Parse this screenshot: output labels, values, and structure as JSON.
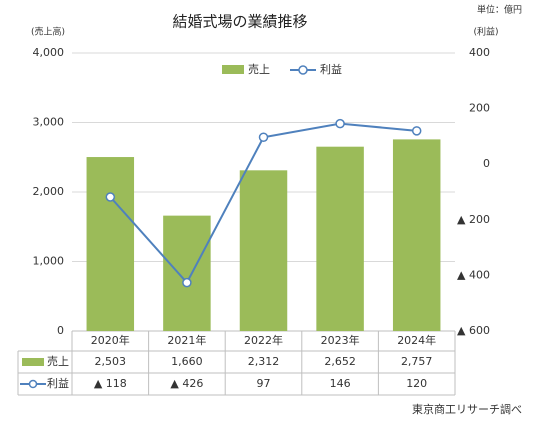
{
  "chart_data": {
    "type": "bar-line",
    "title": "結婚式場の業績推移",
    "unit_note": "単位：億円",
    "y_label": "(売上高)",
    "y2_label": "(利益)",
    "source": "東京商工リサーチ調べ",
    "categories": [
      "2020年",
      "2021年",
      "2022年",
      "2023年",
      "2024年"
    ],
    "series": [
      {
        "name": "売上",
        "type": "bar",
        "color": "#9bbb59",
        "values": [
          2503,
          1660,
          2312,
          2652,
          2757
        ],
        "value_labels": [
          "2,503",
          "1,660",
          "2,312",
          "2,652",
          "2,757"
        ]
      },
      {
        "name": "利益",
        "type": "line",
        "axis": "y2",
        "color": "#4f81bd",
        "values": [
          -118,
          -426,
          97,
          146,
          120
        ],
        "value_labels": [
          "▲ 118",
          "▲ 426",
          "97",
          "146",
          "120"
        ]
      }
    ],
    "ylim": [
      0,
      4000
    ],
    "yticks": [
      0,
      {
        "value": 1000,
        "label": "1,000"
      },
      {
        "value": 2000,
        "label": "2,000"
      },
      {
        "value": 3000,
        "label": "3,000"
      },
      {
        "value": 4000,
        "label": "4,000"
      }
    ],
    "y2lim": [
      -600,
      400
    ],
    "y2ticks": [
      {
        "value": -600,
        "label": "▲ 600"
      },
      {
        "value": -400,
        "label": "▲ 400"
      },
      {
        "value": -200,
        "label": "▲ 200"
      },
      0,
      200,
      400
    ],
    "grid": true,
    "legend": "top"
  }
}
